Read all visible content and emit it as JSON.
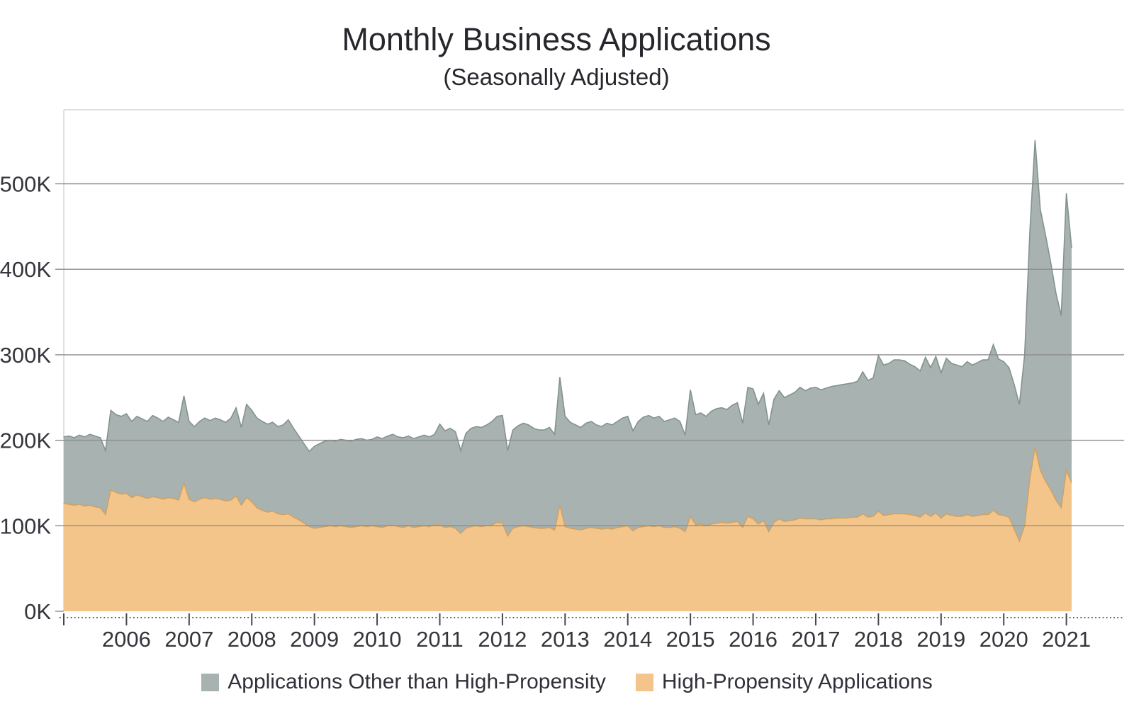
{
  "title": "Monthly Business Applications",
  "subtitle": "(Seasonally Adjusted)",
  "legend": [
    {
      "label": "Applications Other than High-Propensity",
      "color": "#a7b2b1"
    },
    {
      "label": "High-Propensity Applications",
      "color": "#f4c58a"
    }
  ],
  "colors": {
    "gray_fill": "#a7b2b1",
    "gray_edge": "#83938f",
    "orange_fill": "#f4c58a",
    "orange_edge": "#d2a05c",
    "gridline": "#8d8d8d",
    "plot_border": "#d6d6d6",
    "axis": "#47474f",
    "label_text": "#35353c"
  },
  "chart_data": {
    "type": "area",
    "stacked": true,
    "title": "Monthly Business Applications",
    "subtitle": "(Seasonally Adjusted)",
    "unit": "thousands of applications per month",
    "x_start": "2005-01",
    "x_end": "2021-02",
    "x_frequency": "monthly",
    "x_tick_labels": [
      "2006",
      "2007",
      "2008",
      "2009",
      "2010",
      "2011",
      "2012",
      "2013",
      "2014",
      "2015",
      "2016",
      "2017",
      "2018",
      "2019",
      "2020",
      "2021"
    ],
    "y_tick_labels": [
      "0K",
      "100K",
      "200K",
      "300K",
      "400K",
      "500K"
    ],
    "y_tick_values": [
      0,
      100,
      200,
      300,
      400,
      500
    ],
    "ylim": [
      0,
      588
    ],
    "grid": "horizontal",
    "legend_position": "bottom",
    "series": [
      {
        "name": "High-Propensity Applications",
        "color": "#f4c58a",
        "edge": "#d2a05c",
        "stack_order": "bottom",
        "values": [
          126,
          125,
          124,
          125,
          123,
          124,
          122,
          121,
          113,
          142,
          139,
          137,
          138,
          133,
          136,
          134,
          132,
          134,
          133,
          131,
          133,
          132,
          130,
          150,
          131,
          128,
          131,
          133,
          131,
          132,
          131,
          129,
          130,
          135,
          124,
          133,
          128,
          121,
          118,
          116,
          117,
          114,
          113,
          114,
          110,
          107,
          103,
          99,
          97,
          98,
          99,
          100,
          99,
          100,
          99,
          98,
          99,
          100,
          99,
          100,
          99,
          98,
          100,
          101,
          99,
          98,
          100,
          98,
          99,
          100,
          99,
          101,
          101,
          98,
          99,
          97,
          91,
          97,
          99,
          100,
          99,
          100,
          101,
          104,
          103,
          88,
          97,
          99,
          100,
          99,
          98,
          97,
          97,
          98,
          95,
          124,
          99,
          97,
          96,
          95,
          97,
          98,
          97,
          96,
          97,
          96,
          98,
          99,
          100,
          94,
          98,
          99,
          100,
          99,
          100,
          98,
          98,
          99,
          97,
          93,
          111,
          101,
          102,
          100,
          102,
          103,
          104,
          103,
          104,
          105,
          98,
          111,
          108,
          102,
          106,
          93,
          104,
          108,
          105,
          106,
          107,
          109,
          108,
          108,
          108,
          107,
          108,
          108,
          109,
          109,
          109,
          110,
          110,
          114,
          110,
          111,
          117,
          112,
          113,
          114,
          114,
          114,
          113,
          112,
          110,
          115,
          111,
          115,
          109,
          114,
          112,
          111,
          111,
          113,
          111,
          112,
          113,
          113,
          118,
          113,
          112,
          110,
          96,
          82,
          100,
          155,
          192,
          165,
          152,
          142,
          130,
          121,
          165,
          150
        ]
      },
      {
        "name": "Applications Other than High-Propensity",
        "color": "#a7b2b1",
        "edge": "#83938f",
        "stack_order": "top",
        "values": [
          78,
          80,
          79,
          81,
          81,
          83,
          83,
          82,
          75,
          93,
          91,
          91,
          93,
          89,
          92,
          91,
          90,
          95,
          93,
          91,
          94,
          92,
          91,
          102,
          91,
          88,
          91,
          93,
          92,
          94,
          93,
          92,
          96,
          103,
          91,
          109,
          107,
          105,
          104,
          103,
          104,
          102,
          105,
          110,
          104,
          98,
          93,
          88,
          96,
          98,
          100,
          100,
          100,
          101,
          101,
          101,
          102,
          102,
          101,
          101,
          105,
          104,
          105,
          106,
          105,
          105,
          105,
          104,
          105,
          106,
          105,
          106,
          118,
          113,
          115,
          113,
          97,
          111,
          115,
          116,
          116,
          118,
          121,
          124,
          126,
          100,
          115,
          118,
          120,
          119,
          116,
          115,
          115,
          117,
          112,
          150,
          129,
          124,
          122,
          120,
          123,
          124,
          121,
          120,
          123,
          122,
          124,
          127,
          128,
          117,
          124,
          128,
          129,
          127,
          128,
          124,
          126,
          127,
          125,
          113,
          148,
          129,
          130,
          128,
          132,
          134,
          134,
          133,
          137,
          139,
          122,
          151,
          152,
          140,
          149,
          125,
          144,
          150,
          145,
          147,
          149,
          153,
          150,
          153,
          154,
          152,
          153,
          155,
          155,
          156,
          157,
          157,
          159,
          166,
          160,
          162,
          182,
          176,
          177,
          180,
          180,
          179,
          176,
          174,
          171,
          182,
          174,
          183,
          170,
          182,
          178,
          177,
          175,
          179,
          177,
          179,
          181,
          181,
          194,
          182,
          180,
          175,
          169,
          160,
          200,
          290,
          359,
          305,
          288,
          266,
          242,
          225,
          324,
          275
        ]
      }
    ]
  }
}
